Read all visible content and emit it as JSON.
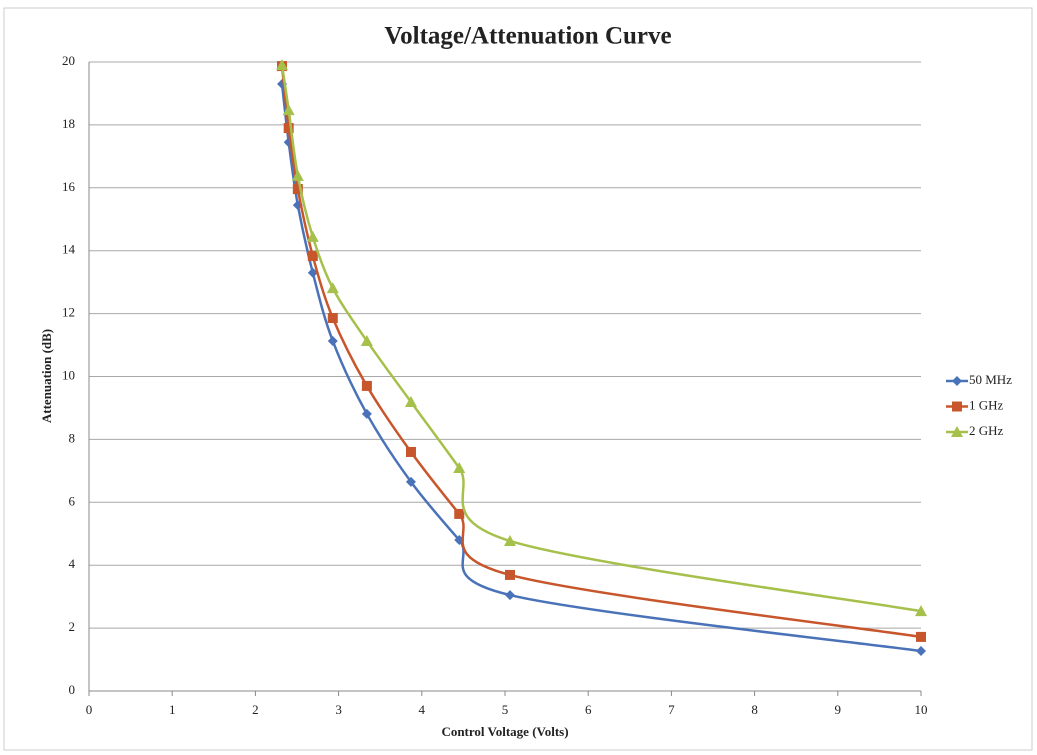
{
  "chart_data": {
    "type": "line",
    "title": "Voltage/Attenuation Curve",
    "x_label": "Control Voltage (Volts)",
    "y_label": "Attenuation (dB)",
    "x": [
      2.32,
      2.4,
      2.51,
      2.69,
      2.93,
      3.34,
      3.87,
      4.45,
      5.06,
      10
    ],
    "series": [
      {
        "name": "50 MHz",
        "color": "#4a72b8",
        "marker": "diamond",
        "values": [
          19.3,
          17.45,
          15.45,
          13.3,
          11.13,
          8.81,
          6.65,
          4.8,
          3.05,
          1.27
        ]
      },
      {
        "name": "1 GHz",
        "color": "#c8562c",
        "marker": "square",
        "values": [
          19.87,
          17.9,
          15.96,
          13.83,
          11.86,
          9.7,
          7.6,
          5.63,
          3.69,
          1.72
        ]
      },
      {
        "name": "2 GHz",
        "color": "#a6c04c",
        "marker": "triangle",
        "values": [
          19.9,
          18.47,
          16.38,
          14.44,
          12.81,
          11.13,
          9.19,
          7.09,
          4.77,
          2.54
        ]
      }
    ],
    "xlim": [
      0,
      10
    ],
    "xticks": [
      0,
      1,
      2,
      3,
      4,
      5,
      6,
      7,
      8,
      9,
      10
    ],
    "ylim": [
      0,
      20
    ],
    "yticks": [
      0,
      2,
      4,
      6,
      8,
      10,
      12,
      14,
      16,
      18,
      20
    ],
    "grid": true,
    "legend": "right"
  }
}
